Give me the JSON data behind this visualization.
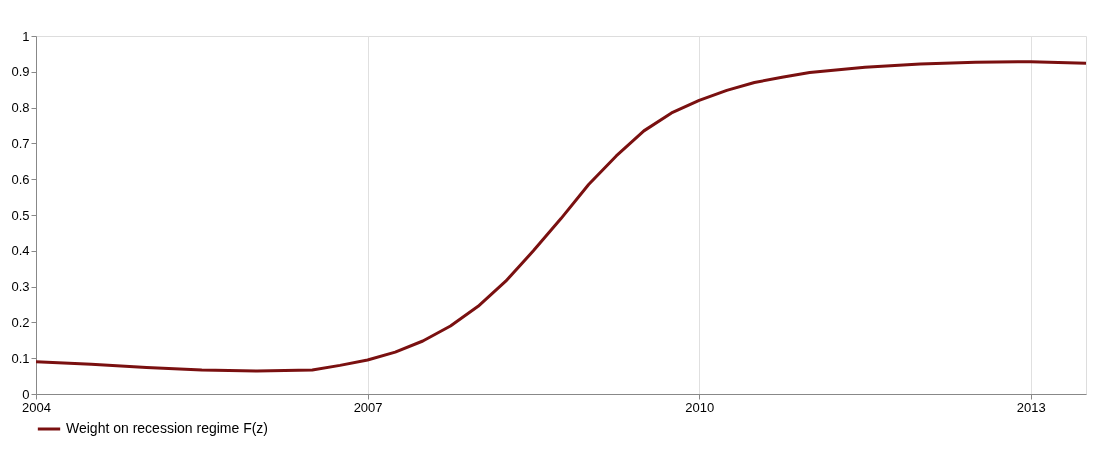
{
  "chart_data": {
    "type": "line",
    "x": [
      2004,
      2004.5,
      2005,
      2005.5,
      2006,
      2006.5,
      2006.75,
      2007,
      2007.25,
      2007.5,
      2007.75,
      2008,
      2008.25,
      2008.5,
      2008.75,
      2009,
      2009.25,
      2009.5,
      2009.75,
      2010,
      2010.25,
      2010.5,
      2010.75,
      2011,
      2011.5,
      2012,
      2012.5,
      2013,
      2013.5
    ],
    "series": [
      {
        "name": "Weight on recession regime F(z)",
        "color": "#7a1010",
        "values": [
          0.09,
          0.083,
          0.074,
          0.067,
          0.064,
          0.067,
          0.08,
          0.095,
          0.117,
          0.148,
          0.19,
          0.245,
          0.315,
          0.4,
          0.49,
          0.585,
          0.665,
          0.735,
          0.785,
          0.82,
          0.848,
          0.87,
          0.885,
          0.898,
          0.913,
          0.922,
          0.927,
          0.928,
          0.924
        ]
      }
    ],
    "xlim": [
      2004,
      2013.5
    ],
    "xticks": [
      2004,
      2007,
      2010,
      2013
    ],
    "ylim": [
      0,
      1
    ],
    "yticks": [
      0,
      0.1,
      0.2,
      0.3,
      0.4,
      0.5,
      0.6,
      0.7,
      0.8,
      0.9,
      1
    ],
    "grid": "x",
    "legend": "bottom",
    "marker": "none",
    "line_style": "solid"
  }
}
